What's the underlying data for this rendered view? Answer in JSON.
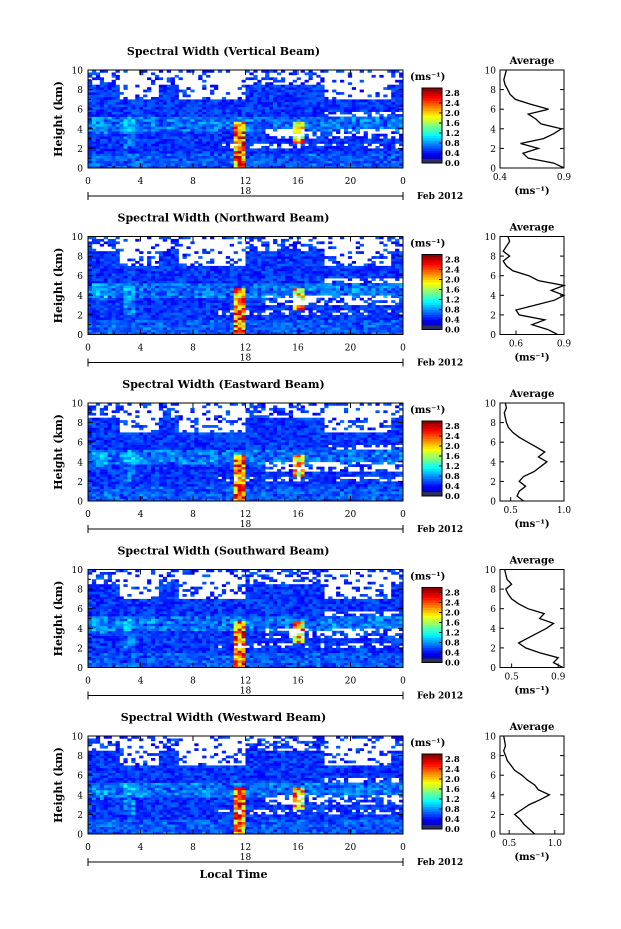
{
  "figure": {
    "xlabel": "Local Time",
    "date_label": "Feb 2012",
    "day_label": "18",
    "cb_unit": "(ms⁻¹)",
    "avg_title": "Average",
    "avg_xlabel": "(ms⁻¹)"
  },
  "chart_data": [
    {
      "type": "heatmap",
      "title": "Spectral Width (Vertical Beam)",
      "xlabel": "Local Time",
      "ylabel": "Height (km)",
      "xlim": [
        0,
        24
      ],
      "ylim": [
        0,
        10
      ],
      "xticks": [
        "0",
        "4",
        "8",
        "12",
        "16",
        "20",
        "0"
      ],
      "yticks": [
        "0",
        "2",
        "4",
        "6",
        "8",
        "10"
      ],
      "colorbar": {
        "label": "(ms⁻¹)",
        "range": [
          0,
          3.0
        ],
        "ticks": [
          "0.0",
          "0.4",
          "0.8",
          "1.2",
          "1.6",
          "2.0",
          "2.4",
          "2.8"
        ]
      },
      "average_profile": {
        "title": "Average",
        "xlabel": "(ms⁻¹)",
        "xlim": [
          0.4,
          0.9
        ],
        "xticks": [
          "0.4",
          "0.9"
        ],
        "heights": [
          0.0,
          0.5,
          1.0,
          1.5,
          2.0,
          2.5,
          3.0,
          3.5,
          4.0,
          4.5,
          5.0,
          5.5,
          6.0,
          6.5,
          7.0,
          7.5,
          8.0,
          8.5,
          9.0,
          9.5,
          10.0
        ],
        "values": [
          0.9,
          0.82,
          0.62,
          0.58,
          0.7,
          0.56,
          0.74,
          0.82,
          0.88,
          0.72,
          0.68,
          0.62,
          0.78,
          0.64,
          0.52,
          0.48,
          0.46,
          0.44,
          0.43,
          0.44,
          0.45
        ]
      }
    },
    {
      "type": "heatmap",
      "title": "Spectral Width (Northward Beam)",
      "xlabel": "Local Time",
      "ylabel": "Height (km)",
      "xlim": [
        0,
        24
      ],
      "ylim": [
        0,
        10
      ],
      "xticks": [
        "0",
        "4",
        "8",
        "12",
        "16",
        "20",
        "0"
      ],
      "yticks": [
        "0",
        "2",
        "4",
        "6",
        "8",
        "10"
      ],
      "colorbar": {
        "label": "(ms⁻¹)",
        "range": [
          0,
          3.0
        ],
        "ticks": [
          "0.0",
          "0.4",
          "0.8",
          "1.2",
          "1.6",
          "2.0",
          "2.4",
          "2.8"
        ]
      },
      "average_profile": {
        "title": "Average",
        "xlabel": "(ms⁻¹)",
        "xlim": [
          0.5,
          0.9
        ],
        "xticks": [
          "0.6",
          "0.9"
        ],
        "heights": [
          0.0,
          0.5,
          1.0,
          1.5,
          2.0,
          2.5,
          3.0,
          3.5,
          4.0,
          4.5,
          5.0,
          5.5,
          6.0,
          6.5,
          7.0,
          7.5,
          8.0,
          8.5,
          9.0,
          9.5,
          10.0
        ],
        "values": [
          0.86,
          0.8,
          0.7,
          0.78,
          0.62,
          0.6,
          0.72,
          0.84,
          0.9,
          0.82,
          0.9,
          0.74,
          0.68,
          0.58,
          0.54,
          0.52,
          0.56,
          0.52,
          0.54,
          0.56,
          0.55
        ]
      }
    },
    {
      "type": "heatmap",
      "title": "Spectral Width (Eastward Beam)",
      "xlabel": "Local Time",
      "ylabel": "Height (km)",
      "xlim": [
        0,
        24
      ],
      "ylim": [
        0,
        10
      ],
      "xticks": [
        "0",
        "4",
        "8",
        "12",
        "16",
        "20",
        "0"
      ],
      "yticks": [
        "0",
        "2",
        "4",
        "6",
        "8",
        "10"
      ],
      "colorbar": {
        "label": "(ms⁻¹)",
        "range": [
          0,
          3.0
        ],
        "ticks": [
          "0.0",
          "0.4",
          "0.8",
          "1.2",
          "1.6",
          "2.0",
          "2.4",
          "2.8"
        ]
      },
      "average_profile": {
        "title": "Average",
        "xlabel": "(ms⁻¹)",
        "xlim": [
          0.4,
          1.0
        ],
        "xticks": [
          "0.5",
          "1.0"
        ],
        "heights": [
          0.0,
          0.5,
          1.0,
          1.5,
          2.0,
          2.5,
          3.0,
          3.5,
          4.0,
          4.5,
          5.0,
          5.5,
          6.0,
          6.5,
          7.0,
          7.5,
          8.0,
          8.5,
          9.0,
          9.5,
          10.0
        ],
        "values": [
          0.62,
          0.56,
          0.58,
          0.64,
          0.58,
          0.62,
          0.72,
          0.78,
          0.84,
          0.76,
          0.82,
          0.74,
          0.66,
          0.58,
          0.52,
          0.48,
          0.46,
          0.45,
          0.44,
          0.46,
          0.45
        ]
      }
    },
    {
      "type": "heatmap",
      "title": "Spectral Width (Southward Beam)",
      "xlabel": "Local Time",
      "ylabel": "Height (km)",
      "xlim": [
        0,
        24
      ],
      "ylim": [
        0,
        10
      ],
      "xticks": [
        "0",
        "4",
        "8",
        "12",
        "16",
        "20",
        "0"
      ],
      "yticks": [
        "0",
        "2",
        "4",
        "6",
        "8",
        "10"
      ],
      "colorbar": {
        "label": "(ms⁻¹)",
        "range": [
          0,
          3.0
        ],
        "ticks": [
          "0.0",
          "0.4",
          "0.8",
          "1.2",
          "1.6",
          "2.0",
          "2.4",
          "2.8"
        ]
      },
      "average_profile": {
        "title": "Average",
        "xlabel": "(ms⁻¹)",
        "xlim": [
          0.4,
          0.95
        ],
        "xticks": [
          "0.5",
          "0.9"
        ],
        "heights": [
          0.0,
          0.5,
          1.0,
          1.5,
          2.0,
          2.5,
          3.0,
          3.5,
          4.0,
          4.5,
          5.0,
          5.5,
          6.0,
          6.5,
          7.0,
          7.5,
          8.0,
          8.5,
          9.0,
          9.5,
          10.0
        ],
        "values": [
          0.94,
          0.86,
          0.9,
          0.74,
          0.62,
          0.56,
          0.64,
          0.72,
          0.8,
          0.86,
          0.74,
          0.78,
          0.64,
          0.56,
          0.5,
          0.47,
          0.45,
          0.5,
          0.46,
          0.45,
          0.44
        ]
      }
    },
    {
      "type": "heatmap",
      "title": "Spectral Width (Westward Beam)",
      "xlabel": "Local Time",
      "ylabel": "Height (km)",
      "xlim": [
        0,
        24
      ],
      "ylim": [
        0,
        10
      ],
      "xticks": [
        "0",
        "4",
        "8",
        "12",
        "16",
        "20",
        "0"
      ],
      "yticks": [
        "0",
        "2",
        "4",
        "6",
        "8",
        "10"
      ],
      "colorbar": {
        "label": "(ms⁻¹)",
        "range": [
          0,
          3.0
        ],
        "ticks": [
          "0.0",
          "0.4",
          "0.8",
          "1.2",
          "1.6",
          "2.0",
          "2.4",
          "2.8"
        ]
      },
      "average_profile": {
        "title": "Average",
        "xlabel": "(ms⁻¹)",
        "xlim": [
          0.4,
          1.1
        ],
        "xticks": [
          "0.5",
          "1.0"
        ],
        "heights": [
          0.0,
          0.5,
          1.0,
          1.5,
          2.0,
          2.5,
          3.0,
          3.5,
          4.0,
          4.5,
          5.0,
          5.5,
          6.0,
          6.5,
          7.0,
          7.5,
          8.0,
          8.5,
          9.0,
          9.5,
          10.0
        ],
        "values": [
          0.78,
          0.72,
          0.66,
          0.62,
          0.56,
          0.64,
          0.72,
          0.84,
          0.94,
          0.82,
          0.78,
          0.7,
          0.64,
          0.56,
          0.52,
          0.48,
          0.46,
          0.44,
          0.46,
          0.45,
          0.44
        ]
      }
    }
  ]
}
